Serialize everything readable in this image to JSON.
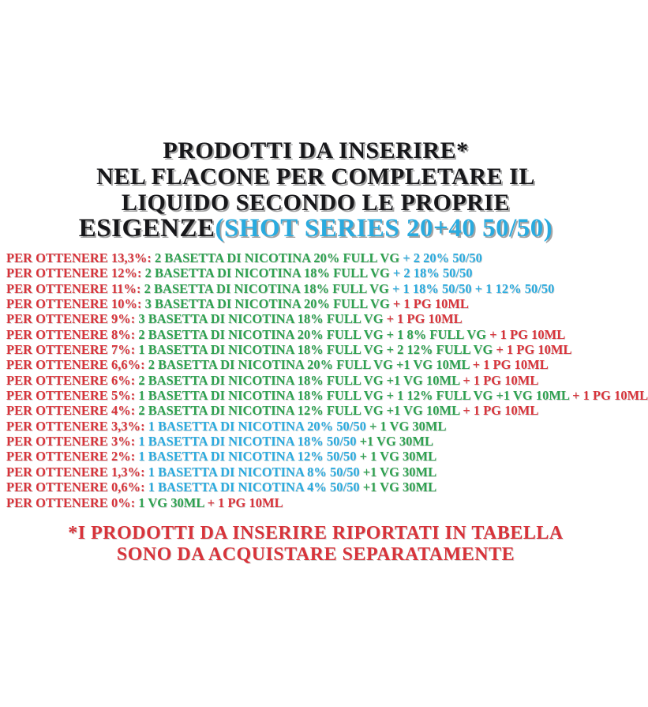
{
  "colors": {
    "red": "#d8333a",
    "green": "#2ea150",
    "cyan": "#2aabdf",
    "title_black": "#17171a",
    "background": "#ffffff"
  },
  "title": {
    "line1": "PRODOTTI DA INSERIRE*",
    "line2": "NEL FLACONE PER COMPLETARE IL",
    "line3": "LIQUIDO SECONDO LE PROPRIE",
    "line4_black": "ESIGENZE",
    "line4_cyan": "(SHOT SERIES 20+40 50/50)"
  },
  "recipes": [
    {
      "label": "PER OTTENERE 13,3%:",
      "segments": [
        {
          "text": "2 BASETTA DI NICOTINA 20% FULL VG",
          "color": "green"
        },
        {
          "text": "+ 2 20% 50/50",
          "color": "cyan"
        }
      ]
    },
    {
      "label": "PER OTTENERE 12%:",
      "segments": [
        {
          "text": "2 BASETTA DI NICOTINA 18% FULL VG",
          "color": "green"
        },
        {
          "text": "+ 2 18% 50/50",
          "color": "cyan"
        }
      ]
    },
    {
      "label": "PER OTTENERE 11%:",
      "segments": [
        {
          "text": "2 BASETTA DI NICOTINA 18% FULL VG",
          "color": "green"
        },
        {
          "text": "+ 1 18% 50/50 + 1 12% 50/50",
          "color": "cyan"
        }
      ]
    },
    {
      "label": "PER OTTENERE 10%:",
      "segments": [
        {
          "text": "3 BASETTA DI NICOTINA 20% FULL VG",
          "color": "green"
        },
        {
          "text": "+ 1 PG 10ML",
          "color": "red"
        }
      ]
    },
    {
      "label": "PER OTTENERE 9%:",
      "segments": [
        {
          "text": "3 BASETTA DI NICOTINA 18% FULL VG",
          "color": "green"
        },
        {
          "text": "+ 1 PG 10ML",
          "color": "red"
        }
      ]
    },
    {
      "label": "PER OTTENERE 8%:",
      "segments": [
        {
          "text": "2 BASETTA DI NICOTINA 20% FULL VG + 1 8% FULL VG",
          "color": "green"
        },
        {
          "text": "+ 1 PG 10ML",
          "color": "red"
        }
      ]
    },
    {
      "label": "PER OTTENERE 7%:",
      "segments": [
        {
          "text": "1 BASETTA DI NICOTINA 18% FULL VG + 2 12% FULL VG",
          "color": "green"
        },
        {
          "text": "+ 1 PG 10ML",
          "color": "red"
        }
      ]
    },
    {
      "label": "PER OTTENERE 6,6%:",
      "segments": [
        {
          "text": "2 BASETTA DI NICOTINA 20% FULL VG +1 VG 10ML",
          "color": "green"
        },
        {
          "text": "+ 1 PG 10ML",
          "color": "red"
        }
      ]
    },
    {
      "label": "PER OTTENERE 6%:",
      "segments": [
        {
          "text": "2 BASETTA DI NICOTINA 18% FULL VG +1 VG 10ML",
          "color": "green"
        },
        {
          "text": "+ 1 PG 10ML",
          "color": "red"
        }
      ]
    },
    {
      "label": "PER OTTENERE 5%:",
      "segments": [
        {
          "text": "1 BASETTA DI NICOTINA 18% FULL VG + 1 12% FULL VG +1 VG 10ML",
          "color": "green"
        },
        {
          "text": "+ 1 PG 10ML",
          "color": "red"
        }
      ]
    },
    {
      "label": "PER OTTENERE 4%:",
      "segments": [
        {
          "text": "2 BASETTA DI NICOTINA 12% FULL VG +1 VG 10ML",
          "color": "green"
        },
        {
          "text": "+ 1 PG 10ML",
          "color": "red"
        }
      ]
    },
    {
      "label": "PER OTTENERE 3,3%:",
      "segments": [
        {
          "text": "1 BASETTA DI NICOTINA 20% 50/50",
          "color": "cyan"
        },
        {
          "text": "+ 1 VG 30ML",
          "color": "green"
        }
      ]
    },
    {
      "label": "PER OTTENERE 3%:",
      "segments": [
        {
          "text": "1 BASETTA DI NICOTINA 18% 50/50",
          "color": "cyan"
        },
        {
          "text": "+1 VG 30ML",
          "color": "green"
        }
      ]
    },
    {
      "label": "PER OTTENERE 2%:",
      "segments": [
        {
          "text": "1 BASETTA DI NICOTINA 12% 50/50",
          "color": "cyan"
        },
        {
          "text": "+ 1 VG 30ML",
          "color": "green"
        }
      ]
    },
    {
      "label": "PER OTTENERE 1,3%:",
      "segments": [
        {
          "text": "1 BASETTA DI NICOTINA 8% 50/50",
          "color": "cyan"
        },
        {
          "text": "+1 VG 30ML",
          "color": "green"
        }
      ]
    },
    {
      "label": "PER OTTENERE 0,6%:",
      "segments": [
        {
          "text": "1 BASETTA DI NICOTINA 4% 50/50",
          "color": "cyan"
        },
        {
          "text": "+1 VG 30ML",
          "color": "green"
        }
      ]
    },
    {
      "label": "PER OTTENERE 0%:",
      "segments": [
        {
          "text": "1 VG 30ML",
          "color": "green"
        },
        {
          "text": "+ 1 PG 10ML",
          "color": "red"
        }
      ]
    }
  ],
  "footnote": {
    "line1": "*I PRODOTTI DA INSERIRE RIPORTATI IN TABELLA",
    "line2": "SONO DA ACQUISTARE SEPARATAMENTE"
  }
}
